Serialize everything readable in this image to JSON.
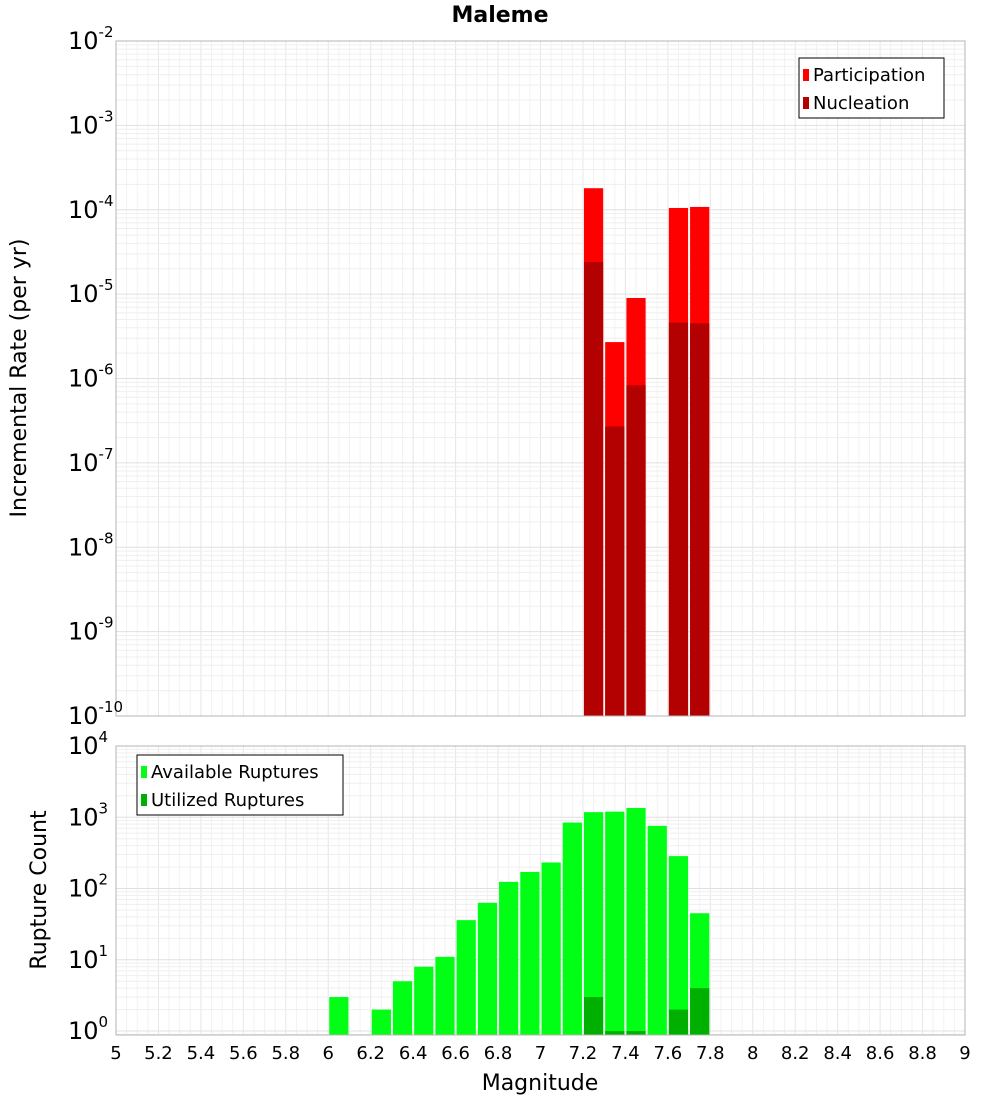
{
  "chart_data": [
    {
      "type": "bar",
      "title": "Maleme",
      "xlabel": "",
      "ylabel": "Incremental Rate (per yr)",
      "yscale": "log",
      "ylim": [
        1e-10,
        0.01
      ],
      "xlim": [
        5,
        9
      ],
      "grid": true,
      "legend_position": "top-right",
      "series": [
        {
          "name": "Participation",
          "color": "#ff0000",
          "x": [
            7.25,
            7.35,
            7.45,
            7.65,
            7.75
          ],
          "values": [
            0.00018,
            2.7e-06,
            9e-06,
            0.000105,
            0.000108
          ]
        },
        {
          "name": "Nucleation",
          "color": "#b30000",
          "x": [
            7.25,
            7.35,
            7.45,
            7.65,
            7.75
          ],
          "values": [
            2.4e-05,
            2.7e-07,
            8.3e-07,
            4.6e-06,
            4.5e-06
          ]
        }
      ]
    },
    {
      "type": "bar",
      "title": "",
      "xlabel": "Magnitude",
      "ylabel": "Rupture Count",
      "yscale": "log",
      "ylim": [
        0.88,
        10000
      ],
      "xlim": [
        5,
        9
      ],
      "grid": true,
      "legend_position": "top-left",
      "series": [
        {
          "name": "Available Ruptures",
          "color": "#00ff14",
          "x": [
            6.05,
            6.25,
            6.35,
            6.45,
            6.55,
            6.65,
            6.75,
            6.85,
            6.95,
            7.05,
            7.15,
            7.25,
            7.35,
            7.45,
            7.55,
            7.65,
            7.75
          ],
          "values": [
            3,
            2,
            5,
            8,
            11,
            36,
            63,
            124,
            171,
            232,
            843,
            1180,
            1200,
            1350,
            757,
            285,
            45
          ]
        },
        {
          "name": "Utilized Ruptures",
          "color": "#00b000",
          "x": [
            7.25,
            7.35,
            7.45,
            7.65,
            7.75
          ],
          "values": [
            3,
            1,
            1,
            2,
            4
          ]
        }
      ]
    }
  ],
  "x_ticks": [
    "5",
    "5.2",
    "5.4",
    "5.6",
    "5.8",
    "6",
    "6.2",
    "6.4",
    "6.6",
    "6.8",
    "7",
    "7.2",
    "7.4",
    "7.6",
    "7.8",
    "8",
    "8.2",
    "8.4",
    "8.6",
    "8.8",
    "9"
  ],
  "top_y_exponents": [
    "-2",
    "-3",
    "-4",
    "-5",
    "-6",
    "-7",
    "-8",
    "-9",
    "-10"
  ],
  "bottom_y_exponents": [
    "4",
    "3",
    "2",
    "1",
    "0"
  ],
  "y_tick_base": "10"
}
